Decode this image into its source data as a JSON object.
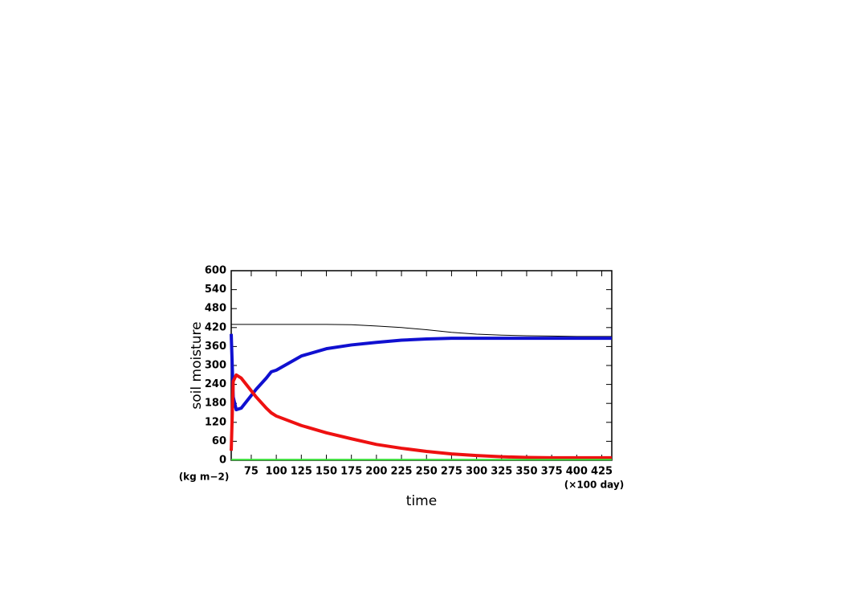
{
  "chart_data": {
    "type": "line",
    "y_label": "soil moisture",
    "x_label": "time",
    "y_unit": "(kg m−2)",
    "x_unit": "(×100 day)",
    "x": [
      55,
      57,
      60,
      65,
      70,
      75,
      80,
      90,
      95,
      100,
      125,
      150,
      175,
      200,
      225,
      250,
      275,
      300,
      325,
      350,
      375,
      400,
      435
    ],
    "series": [
      {
        "color": "#000000",
        "width": 1,
        "values": [
          430,
          430,
          430,
          430,
          430,
          430,
          430,
          430,
          430,
          430,
          430,
          430,
          429,
          425,
          420,
          413,
          405,
          399,
          396,
          394,
          393,
          392,
          392
        ]
      },
      {
        "color": "#1010d0",
        "width": 4,
        "values": [
          400,
          200,
          160,
          165,
          185,
          205,
          225,
          260,
          280,
          285,
          330,
          353,
          365,
          373,
          380,
          384,
          386,
          386,
          386,
          386,
          386,
          386,
          386
        ]
      },
      {
        "color": "#ee1111",
        "width": 4,
        "values": [
          30,
          250,
          270,
          260,
          240,
          220,
          200,
          165,
          150,
          140,
          110,
          87,
          68,
          50,
          38,
          28,
          20,
          15,
          11,
          9,
          8,
          8,
          8
        ]
      },
      {
        "color": "#33dd33",
        "width": 2,
        "values": [
          2,
          2,
          2,
          2,
          2,
          2,
          2,
          2,
          2,
          2,
          2,
          2,
          2,
          2,
          2,
          2,
          2,
          2,
          2,
          2,
          2,
          2,
          2
        ]
      }
    ],
    "xlim": [
      55,
      435
    ],
    "ylim": [
      0,
      600
    ],
    "xticks": [
      75,
      100,
      125,
      150,
      175,
      200,
      225,
      250,
      275,
      300,
      325,
      350,
      375,
      400,
      425
    ],
    "yticks": [
      0,
      60,
      120,
      180,
      240,
      300,
      360,
      420,
      480,
      540,
      600
    ]
  }
}
